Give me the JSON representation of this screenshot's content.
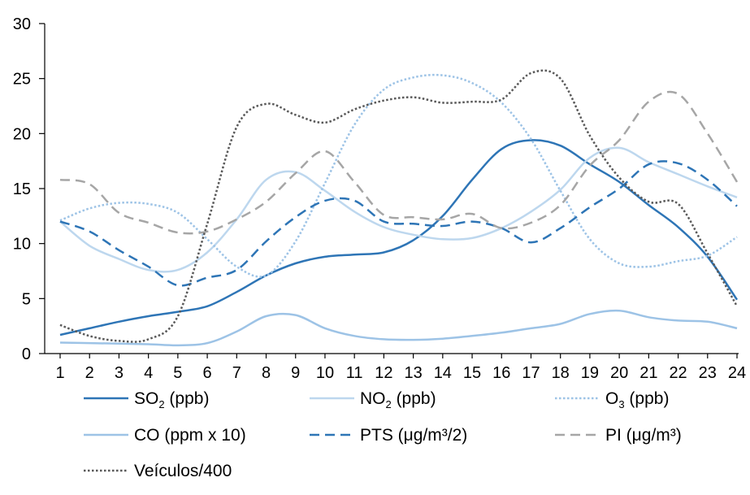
{
  "chart_data": {
    "type": "line",
    "x": [
      1,
      2,
      3,
      4,
      5,
      6,
      7,
      8,
      9,
      10,
      11,
      12,
      13,
      14,
      15,
      16,
      17,
      18,
      19,
      20,
      21,
      22,
      23,
      24
    ],
    "xlim": [
      1,
      24
    ],
    "ylim": [
      0,
      30
    ],
    "yticks": [
      0,
      5,
      10,
      15,
      20,
      25,
      30
    ],
    "xticks": [
      "1",
      "2",
      "3",
      "4",
      "5",
      "6",
      "7",
      "8",
      "9",
      "10",
      "11",
      "12",
      "13",
      "14",
      "15",
      "16",
      "17",
      "18",
      "19",
      "20",
      "21",
      "22",
      "23",
      "24"
    ],
    "grid": false,
    "legend_position": "bottom",
    "series": [
      {
        "name": "SO₂ (ppb)",
        "color": "#2e75b6",
        "style": "solid",
        "width": 2.5,
        "values": [
          1.7,
          2.3,
          2.9,
          3.4,
          3.8,
          4.3,
          5.6,
          7.1,
          8.2,
          8.8,
          9.0,
          9.2,
          10.3,
          12.5,
          15.8,
          18.6,
          19.4,
          18.9,
          17.2,
          15.6,
          13.5,
          11.5,
          8.8,
          4.9
        ]
      },
      {
        "name": "NO₂ (ppb)",
        "color": "#bdd7ee",
        "style": "solid",
        "width": 2.5,
        "values": [
          12.0,
          9.8,
          8.6,
          7.6,
          7.6,
          9.2,
          12.2,
          15.8,
          16.5,
          14.8,
          12.9,
          11.5,
          10.8,
          10.4,
          10.5,
          11.4,
          12.9,
          14.9,
          17.8,
          18.7,
          17.4,
          16.3,
          15.2,
          14.2
        ]
      },
      {
        "name": "O₃ (ppb)",
        "color": "#9dc3e6",
        "style": "dotted",
        "width": 2.5,
        "values": [
          12.1,
          13.2,
          13.7,
          13.6,
          12.8,
          10.4,
          7.9,
          7.1,
          10.2,
          15.5,
          20.8,
          24.0,
          25.1,
          25.3,
          24.6,
          22.8,
          19.5,
          14.8,
          10.4,
          8.2,
          7.9,
          8.4,
          8.9,
          10.6
        ]
      },
      {
        "name": "CO (ppm x 10)",
        "color": "#9dc3e6",
        "style": "solid",
        "width": 2.5,
        "values": [
          1.0,
          0.95,
          0.9,
          0.85,
          0.75,
          0.95,
          2.0,
          3.4,
          3.5,
          2.3,
          1.6,
          1.3,
          1.25,
          1.35,
          1.6,
          1.9,
          2.3,
          2.7,
          3.6,
          3.9,
          3.3,
          3.0,
          2.9,
          2.3
        ]
      },
      {
        "name": "PTS (μg/m³/2)",
        "color": "#2e75b6",
        "style": "dashed",
        "width": 2.5,
        "values": [
          12.0,
          11.1,
          9.4,
          7.9,
          6.2,
          6.9,
          7.6,
          10.2,
          12.4,
          13.9,
          13.9,
          12.0,
          11.8,
          11.6,
          12.0,
          11.4,
          10.1,
          11.4,
          13.3,
          15.0,
          17.2,
          17.3,
          15.8,
          13.4
        ]
      },
      {
        "name": "PI (μg/m³)",
        "color": "#a6a6a6",
        "style": "dashed",
        "width": 2.5,
        "values": [
          15.8,
          15.4,
          12.8,
          11.9,
          11.0,
          11.1,
          12.2,
          13.8,
          16.4,
          18.4,
          15.6,
          12.6,
          12.4,
          12.2,
          12.7,
          11.4,
          11.9,
          13.5,
          17.1,
          19.4,
          22.9,
          23.6,
          20.0,
          15.6
        ]
      },
      {
        "name": "Veículos/400",
        "color": "#595959",
        "style": "dotted",
        "width": 2.5,
        "values": [
          2.6,
          1.6,
          1.15,
          1.3,
          3.4,
          11.8,
          20.6,
          22.7,
          21.7,
          21.0,
          22.2,
          23.0,
          23.3,
          22.8,
          22.9,
          23.1,
          25.5,
          25.0,
          19.8,
          16.0,
          13.8,
          13.6,
          9.1,
          4.3
        ]
      }
    ]
  }
}
